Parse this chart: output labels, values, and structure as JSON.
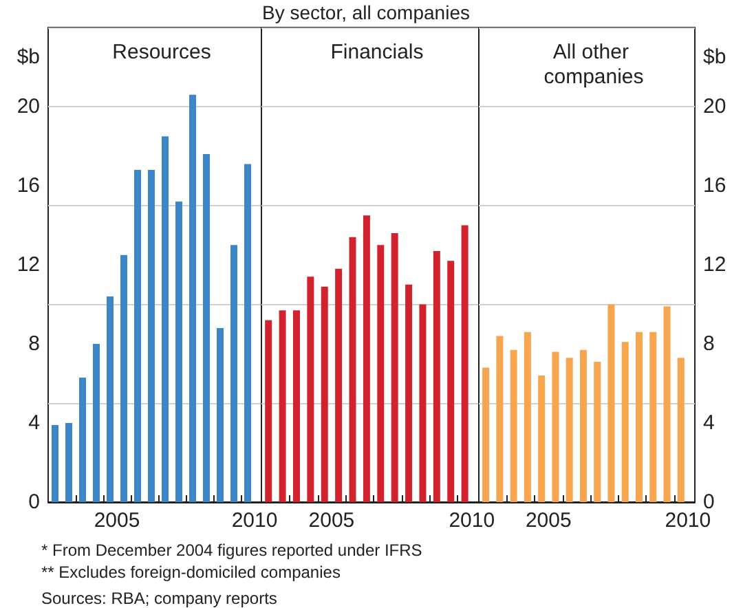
{
  "chart_data": [
    {
      "type": "bar",
      "title": "Resources",
      "ylabel": "$b",
      "x": [
        2003.25,
        2003.75,
        2004.25,
        2004.75,
        2005.25,
        2005.75,
        2006.25,
        2006.75,
        2007.25,
        2007.75,
        2008.25,
        2008.75,
        2009.25,
        2009.75,
        2010.25
      ],
      "series": [
        {
          "color": "#3d87c8",
          "values": [
            3.9,
            4.0,
            6.3,
            8.0,
            10.4,
            12.5,
            16.8,
            16.8,
            18.5,
            15.2,
            20.6,
            17.6,
            8.8,
            13.0,
            17.1
          ]
        }
      ],
      "xlim": [
        2003,
        2010.75
      ],
      "xticks": [
        {
          "value": 2004,
          "label": null
        },
        {
          "value": 2005,
          "label": null
        },
        {
          "value": 2005.5,
          "label": "2005"
        },
        {
          "value": 2006,
          "label": null
        },
        {
          "value": 2007,
          "label": null
        },
        {
          "value": 2008,
          "label": null
        },
        {
          "value": 2009,
          "label": null
        },
        {
          "value": 2010,
          "label": null
        },
        {
          "value": 2010.5,
          "label": "2010"
        }
      ],
      "ylim": [
        0,
        24
      ],
      "yticks": [
        0,
        4,
        8,
        12,
        16,
        20
      ],
      "grid": "y",
      "annotations": [
        "* From December 2004 figures reported under IFRS",
        "** Excludes foreign-domiciled companies",
        "Sources: RBA; company reports"
      ]
    },
    {
      "type": "bar",
      "title": "Financials",
      "subtitle": "By sector, all companies",
      "x": [
        2003.25,
        2003.75,
        2004.25,
        2004.75,
        2005.25,
        2005.75,
        2006.25,
        2006.75,
        2007.25,
        2007.75,
        2008.25,
        2008.75,
        2009.25,
        2009.75,
        2010.25
      ],
      "series": [
        {
          "color": "#d2222e",
          "values": [
            9.2,
            9.7,
            9.7,
            11.4,
            10.9,
            11.8,
            13.4,
            14.5,
            13.0,
            13.6,
            11.0,
            10.0,
            12.7,
            12.2,
            14.0
          ]
        }
      ],
      "xlim": [
        2003,
        2010.75
      ],
      "xticks": [
        {
          "value": 2004,
          "label": null
        },
        {
          "value": 2005,
          "label": null
        },
        {
          "value": 2005.5,
          "label": "2005"
        },
        {
          "value": 2006,
          "label": null
        },
        {
          "value": 2007,
          "label": null
        },
        {
          "value": 2008,
          "label": null
        },
        {
          "value": 2009,
          "label": null
        },
        {
          "value": 2010,
          "label": null
        },
        {
          "value": 2010.5,
          "label": "2010"
        }
      ],
      "ylim": [
        0,
        24
      ],
      "yticks": [
        0,
        4,
        8,
        12,
        16,
        20
      ],
      "grid": "y",
      "tick_labels": "x"
    },
    {
      "type": "bar",
      "title": "All other companies",
      "y2label": "$b",
      "x": [
        2003.25,
        2003.75,
        2004.25,
        2004.75,
        2005.25,
        2005.75,
        2006.25,
        2006.75,
        2007.25,
        2007.75,
        2008.25,
        2008.75,
        2009.25,
        2009.75,
        2010.25
      ],
      "series": [
        {
          "color": "#f7a54f",
          "axis": "y2",
          "values": [
            6.8,
            8.4,
            7.7,
            8.6,
            6.4,
            7.6,
            7.3,
            7.7,
            7.1,
            10.0,
            8.1,
            8.6,
            8.6,
            9.9,
            7.3
          ]
        }
      ],
      "xlim": [
        2003,
        2010.75
      ],
      "xticks": [
        {
          "value": 2004,
          "label": null
        },
        {
          "value": 2005,
          "label": null
        },
        {
          "value": 2005.5,
          "label": "2005"
        },
        {
          "value": 2006,
          "label": null
        },
        {
          "value": 2007,
          "label": null
        },
        {
          "value": 2008,
          "label": null
        },
        {
          "value": 2009,
          "label": null
        },
        {
          "value": 2010,
          "label": null
        },
        {
          "value": 2010.5,
          "label": "2010"
        }
      ],
      "y2lim": [
        0,
        24
      ],
      "y2ticks": [
        0,
        4,
        8,
        12,
        16,
        20
      ],
      "grid": "y"
    }
  ]
}
